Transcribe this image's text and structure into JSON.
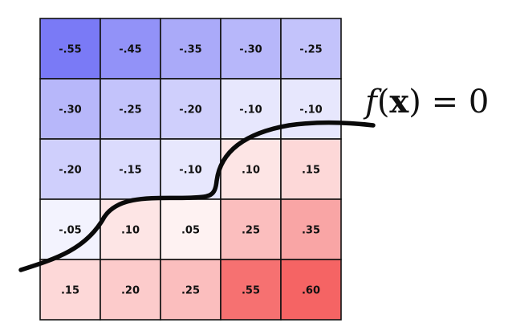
{
  "grid": {
    "rows": [
      [
        -0.55,
        -0.45,
        -0.35,
        -0.3,
        -0.25
      ],
      [
        -0.3,
        -0.25,
        -0.2,
        -0.1,
        -0.1
      ],
      [
        -0.2,
        -0.15,
        -0.1,
        0.1,
        0.15
      ],
      [
        -0.05,
        0.1,
        0.05,
        0.25,
        0.35
      ],
      [
        0.15,
        0.2,
        0.25,
        0.55,
        0.6
      ]
    ],
    "labels": [
      [
        "-.55",
        "-.45",
        "-.35",
        "-.30",
        "-.25"
      ],
      [
        "-.30",
        "-.25",
        "-.20",
        "-.10",
        "-.10"
      ],
      [
        "-.20",
        "-.15",
        "-.10",
        ".10",
        ".15"
      ],
      [
        "-.05",
        ".10",
        ".05",
        ".25",
        ".35"
      ],
      [
        ".15",
        ".20",
        ".25",
        ".55",
        ".60"
      ]
    ],
    "negative_color": "#6e6ef5",
    "positive_color": "#f56464",
    "neutral_color": "#ffffff"
  },
  "curve": {
    "label_f": "f",
    "label_open": "(",
    "label_x": "x",
    "label_close": ")",
    "label_eq": " = 0"
  }
}
